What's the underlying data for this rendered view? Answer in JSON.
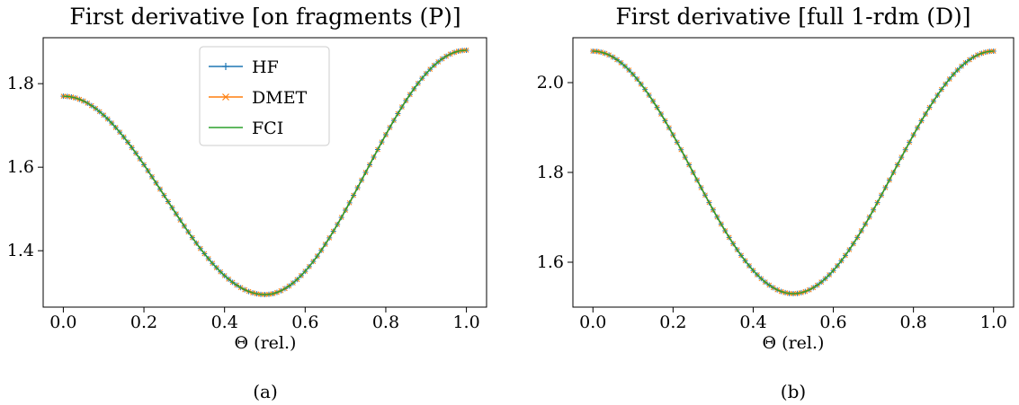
{
  "series_colors": {
    "HF": "#1f77b4",
    "DMET": "#ff7f0e",
    "FCI": "#2ca02c"
  },
  "legend": [
    {
      "name": "HF",
      "marker": "+"
    },
    {
      "name": "DMET",
      "marker": "x"
    },
    {
      "name": "FCI",
      "marker": "none"
    }
  ],
  "chart_data": [
    {
      "type": "line",
      "title": "First derivative [on fragments (P)]",
      "xlabel": "Θ (rel.)",
      "ylabel": "",
      "caption": "(a)",
      "xlim": [
        -0.05,
        1.05
      ],
      "ylim": [
        1.265,
        1.91
      ],
      "xticks": [
        0.0,
        0.2,
        0.4,
        0.6,
        0.8,
        1.0
      ],
      "xtick_labels": [
        "0.0",
        "0.2",
        "0.4",
        "0.6",
        "0.8",
        "1.0"
      ],
      "yticks": [
        1.4,
        1.6,
        1.8
      ],
      "ytick_labels": [
        "1.4",
        "1.6",
        "1.8"
      ],
      "legend_position": "top-center",
      "series": [
        {
          "name": "HF",
          "curve": {
            "y_start": 1.77,
            "y_mid": 1.295,
            "y_end": 1.88,
            "x_mid": 0.5,
            "samples": 101
          }
        },
        {
          "name": "DMET",
          "curve": {
            "y_start": 1.77,
            "y_mid": 1.295,
            "y_end": 1.88,
            "x_mid": 0.5,
            "samples": 101
          }
        },
        {
          "name": "FCI",
          "curve": {
            "y_start": 1.77,
            "y_mid": 1.295,
            "y_end": 1.88,
            "x_mid": 0.5,
            "samples": 101
          }
        }
      ]
    },
    {
      "type": "line",
      "title": "First derivative [full 1-rdm (D)]",
      "xlabel": "Θ (rel.)",
      "ylabel": "",
      "caption": "(b)",
      "xlim": [
        -0.05,
        1.05
      ],
      "ylim": [
        1.5,
        2.1
      ],
      "xticks": [
        0.0,
        0.2,
        0.4,
        0.6,
        0.8,
        1.0
      ],
      "xtick_labels": [
        "0.0",
        "0.2",
        "0.4",
        "0.6",
        "0.8",
        "1.0"
      ],
      "yticks": [
        1.6,
        1.8,
        2.0
      ],
      "ytick_labels": [
        "1.6",
        "1.8",
        "2.0"
      ],
      "legend_position": "none",
      "series": [
        {
          "name": "HF",
          "curve": {
            "y_start": 2.07,
            "y_mid": 1.53,
            "y_end": 2.07,
            "x_mid": 0.5,
            "samples": 101
          }
        },
        {
          "name": "DMET",
          "curve": {
            "y_start": 2.07,
            "y_mid": 1.53,
            "y_end": 2.07,
            "x_mid": 0.5,
            "samples": 101
          }
        },
        {
          "name": "FCI",
          "curve": {
            "y_start": 2.07,
            "y_mid": 1.53,
            "y_end": 2.07,
            "x_mid": 0.5,
            "samples": 101
          }
        }
      ]
    }
  ]
}
